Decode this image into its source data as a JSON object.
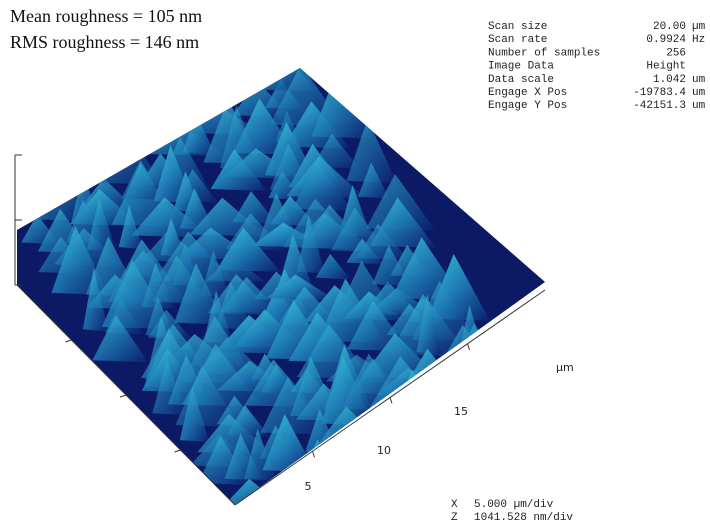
{
  "annotations": [
    "Mean roughness = 105 nm",
    "RMS roughness = 146 nm"
  ],
  "parameters": {
    "rows": [
      [
        "Scan size",
        "20.00",
        "µm"
      ],
      [
        "Scan rate",
        "0.9924",
        "Hz"
      ],
      [
        "Number of samples",
        "256"
      ],
      [
        "Image Data",
        "Height"
      ],
      [
        "Data scale",
        "1.042",
        "um"
      ],
      [
        "Engage X Pos",
        "-19783.4",
        "um"
      ],
      [
        "Engage Y Pos",
        "-42151.3",
        "um"
      ]
    ]
  },
  "axis": {
    "unit": "µm",
    "ticks": [
      "5",
      "10",
      "15"
    ]
  },
  "scale": {
    "rows": [
      [
        "X",
        "5.000 µm/div"
      ],
      [
        "Z",
        "1041.528 nm/div"
      ]
    ]
  }
}
